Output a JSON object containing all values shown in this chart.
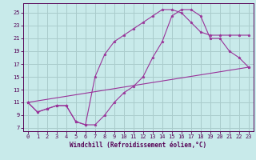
{
  "xlabel": "Windchill (Refroidissement éolien,°C)",
  "bg_color": "#c8eaea",
  "grid_color": "#aacccc",
  "line_color": "#993399",
  "xlim": [
    -0.5,
    23.5
  ],
  "ylim": [
    6.5,
    26.5
  ],
  "yticks": [
    7,
    9,
    11,
    13,
    15,
    17,
    19,
    21,
    23,
    25
  ],
  "xticks": [
    0,
    1,
    2,
    3,
    4,
    5,
    6,
    7,
    8,
    9,
    10,
    11,
    12,
    13,
    14,
    15,
    16,
    17,
    18,
    19,
    20,
    21,
    22,
    23
  ],
  "line1_x": [
    0,
    1,
    2,
    3,
    4,
    5,
    6,
    7,
    8,
    9,
    10,
    11,
    12,
    13,
    14,
    15,
    16,
    17,
    18,
    19,
    20,
    21,
    22,
    23
  ],
  "line1_y": [
    11,
    9.5,
    10,
    10.5,
    10.5,
    8.0,
    7.5,
    7.5,
    9.0,
    11.0,
    12.5,
    13.5,
    15.0,
    18.0,
    20.5,
    24.5,
    25.5,
    25.5,
    24.5,
    21.0,
    21.0,
    19.0,
    18.0,
    16.5
  ],
  "line2_x": [
    0,
    1,
    2,
    3,
    4,
    5,
    6,
    7,
    8,
    9,
    10,
    11,
    12,
    13,
    14,
    15,
    16,
    17,
    18,
    19,
    20,
    21,
    22,
    23
  ],
  "line2_y": [
    11,
    9.5,
    10,
    10.5,
    10.5,
    8.0,
    7.5,
    15.0,
    18.5,
    20.5,
    21.5,
    22.5,
    23.5,
    24.5,
    25.5,
    25.5,
    25.0,
    23.5,
    22.0,
    21.5,
    21.5,
    21.5,
    21.5,
    21.5
  ],
  "line3_x": [
    0,
    23
  ],
  "line3_y": [
    11,
    16.5
  ],
  "font_size_axis": 5.5,
  "font_size_tick": 5.0,
  "tick_color": "#550055",
  "spine_color": "#550055"
}
